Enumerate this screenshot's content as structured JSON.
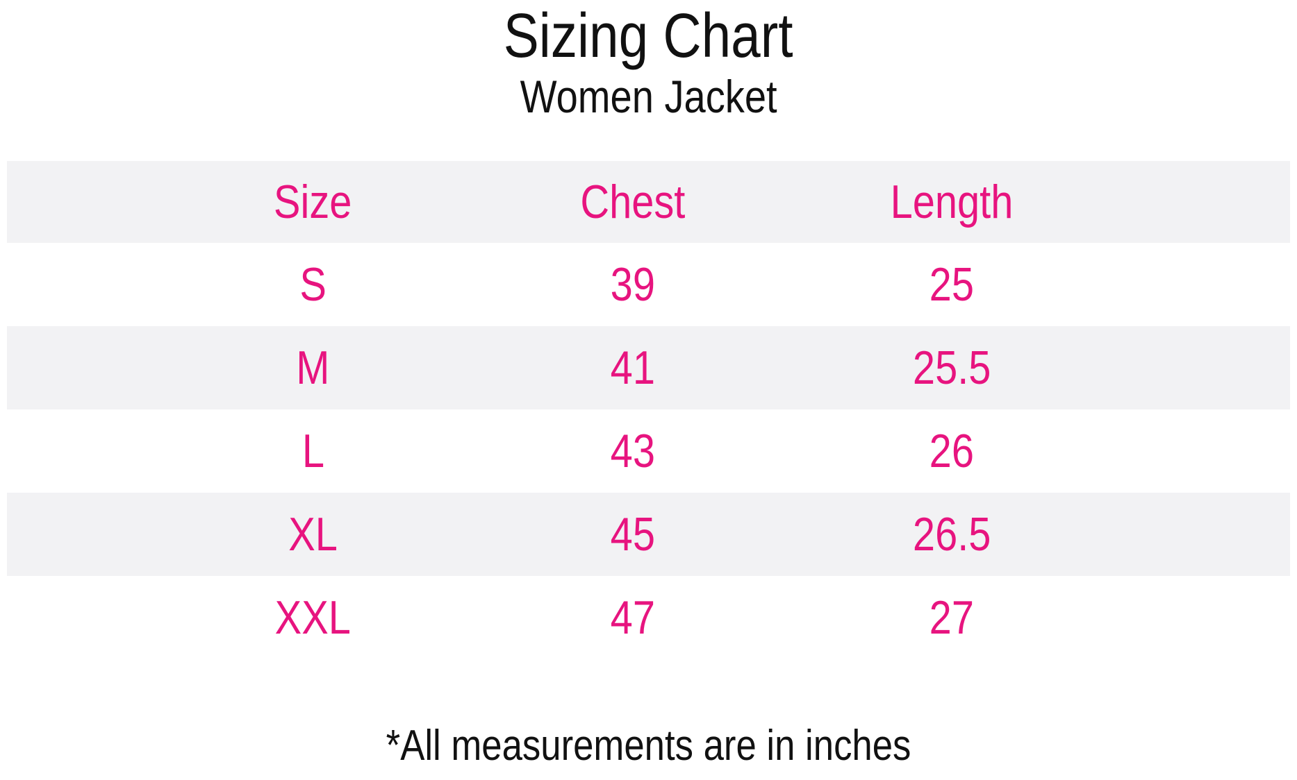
{
  "header": {
    "title": "Sizing Chart",
    "subtitle": "Women Jacket"
  },
  "table": {
    "columns": [
      "Size",
      "Chest",
      "Length"
    ],
    "rows": [
      {
        "size": "S",
        "chest": "39",
        "length": "25"
      },
      {
        "size": "M",
        "chest": "41",
        "length": "25.5"
      },
      {
        "size": "L",
        "chest": "43",
        "length": "26"
      },
      {
        "size": "XL",
        "chest": "45",
        "length": "26.5"
      },
      {
        "size": "XXL",
        "chest": "47",
        "length": "27"
      }
    ]
  },
  "footer": {
    "note": "*All measurements are in inches"
  },
  "colors": {
    "accent_pink": "#E7147F",
    "row_stripe": "#F2F2F4",
    "text_black": "#111111",
    "page_bg": "#FFFFFF"
  },
  "chart_data": {
    "type": "table",
    "title": "Sizing Chart",
    "subtitle": "Women Jacket",
    "columns": [
      "Size",
      "Chest",
      "Length"
    ],
    "rows": [
      [
        "S",
        39,
        25
      ],
      [
        "M",
        41,
        25.5
      ],
      [
        "L",
        43,
        26
      ],
      [
        "XL",
        45,
        26.5
      ],
      [
        "XXL",
        47,
        27
      ]
    ],
    "units": "inches",
    "note": "*All measurements are in inches",
    "layout_hints": {
      "striped_rows": true,
      "stripe_color": "#F2F2F4",
      "text_color": "#E7147F",
      "column_centers_pct": [
        24,
        48.5,
        73.5
      ]
    }
  }
}
